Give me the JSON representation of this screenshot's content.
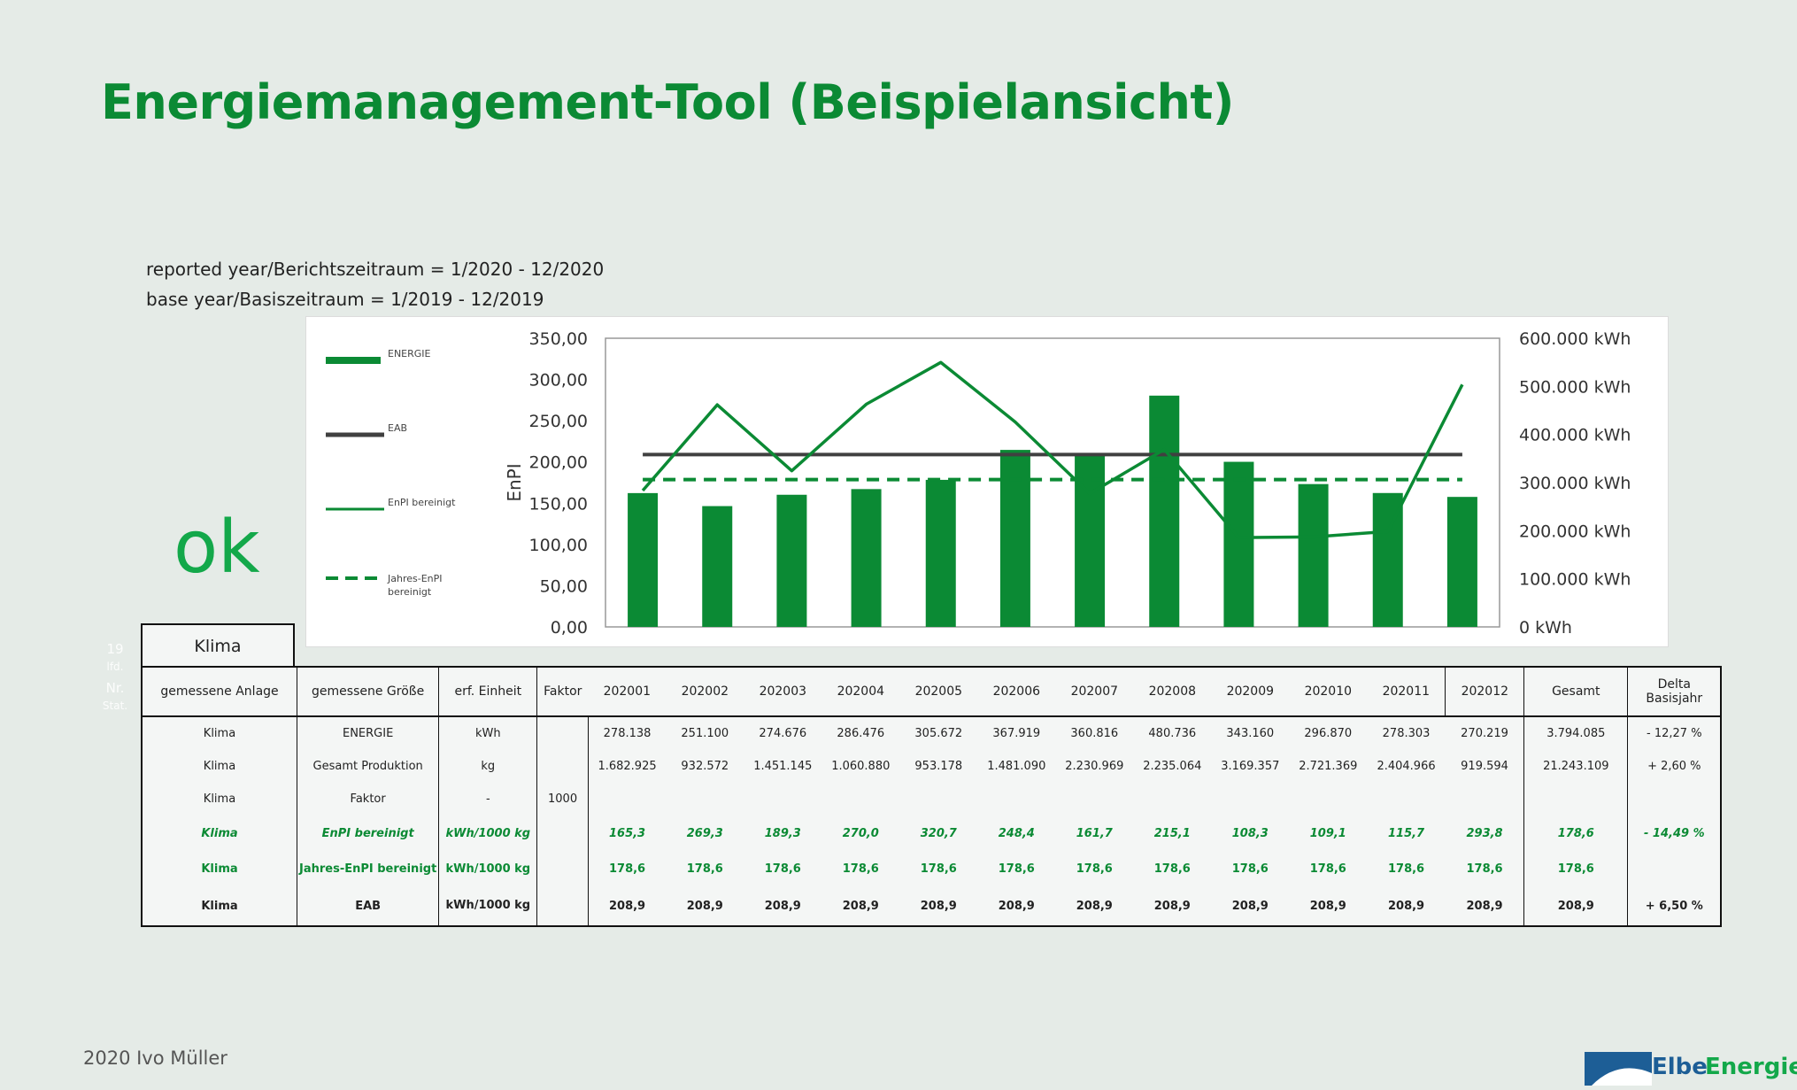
{
  "page": {
    "title": "Energiemanagement-Tool (Beispielansicht)",
    "reported_period": "reported year/Berichtszeitraum = 1/2020 - 12/2020",
    "base_period": "base year/Basiszeitraum = 1/2019 - 12/2019",
    "status_text": "ok",
    "faint_labels": [
      "19",
      "lfd.",
      "Nr.",
      "Stat."
    ],
    "footer_left": "2020 Ivo Müller",
    "logo": {
      "word1": "Elbe",
      "word2": "Energie"
    },
    "colors": {
      "accent": "#0b8a34",
      "bar": "#0b8a34",
      "eab": "#404040",
      "background": "#e5ebe7"
    }
  },
  "chart_data": {
    "type": "bar",
    "categories": [
      "202001",
      "202002",
      "202003",
      "202004",
      "202005",
      "202006",
      "202007",
      "202008",
      "202009",
      "202010",
      "202011",
      "202012"
    ],
    "bar_series": {
      "name": "ENERGIE",
      "axis": "right",
      "unit": "kWh",
      "values": [
        278138,
        251100,
        274676,
        286476,
        305672,
        367919,
        360816,
        480736,
        343160,
        296870,
        278303,
        270219
      ]
    },
    "line_series": [
      {
        "name": "EAB",
        "axis": "left",
        "style": "solid-dark",
        "values": [
          208.9,
          208.9,
          208.9,
          208.9,
          208.9,
          208.9,
          208.9,
          208.9,
          208.9,
          208.9,
          208.9,
          208.9
        ]
      },
      {
        "name": "EnPI bereinigt",
        "axis": "left",
        "style": "solid-green",
        "values": [
          165.3,
          269.3,
          189.3,
          270.0,
          320.7,
          248.4,
          161.7,
          215.1,
          108.3,
          109.1,
          115.7,
          293.8
        ]
      },
      {
        "name": "Jahres-EnPI bereinigt",
        "axis": "left",
        "style": "dashed-green",
        "values": [
          178.6,
          178.6,
          178.6,
          178.6,
          178.6,
          178.6,
          178.6,
          178.6,
          178.6,
          178.6,
          178.6,
          178.6
        ]
      }
    ],
    "ylabel": "EnPI",
    "ylim": [
      0,
      350
    ],
    "y_ticks": [
      "350,00",
      "300,00",
      "250,00",
      "200,00",
      "150,00",
      "100,00",
      "50,00",
      "0,00"
    ],
    "y2lim": [
      0,
      600000
    ],
    "y2_ticks": [
      "600.000 kWh",
      "500.000 kWh",
      "400.000 kWh",
      "300.000 kWh",
      "200.000 kWh",
      "100.000 kWh",
      "0 kWh"
    ],
    "legend": [
      "ENERGIE",
      "EAB",
      "EnPI bereinigt",
      "Jahres-EnPI bereinigt"
    ],
    "legend_placement": "left",
    "grid": false
  },
  "table": {
    "group_label": "Klima",
    "headers": [
      "gemessene Anlage",
      "gemessene Größe",
      "erf. Einheit",
      "Faktor",
      "202001",
      "202002",
      "202003",
      "202004",
      "202005",
      "202006",
      "202007",
      "202008",
      "202009",
      "202010",
      "202011",
      "202012",
      "Gesamt",
      "Delta Basisjahr"
    ],
    "rows": [
      {
        "style": "normal",
        "cells": [
          "Klima",
          "ENERGIE",
          "kWh",
          "",
          "278.138",
          "251.100",
          "274.676",
          "286.476",
          "305.672",
          "367.919",
          "360.816",
          "480.736",
          "343.160",
          "296.870",
          "278.303",
          "270.219",
          "3.794.085",
          "- 12,27 %"
        ]
      },
      {
        "style": "normal",
        "cells": [
          "Klima",
          "Gesamt Produktion",
          "kg",
          "",
          "1.682.925",
          "932.572",
          "1.451.145",
          "1.060.880",
          "953.178",
          "1.481.090",
          "2.230.969",
          "2.235.064",
          "3.169.357",
          "2.721.369",
          "2.404.966",
          "919.594",
          "21.243.109",
          "+ 2,60 %"
        ]
      },
      {
        "style": "normal",
        "cells": [
          "Klima",
          "Faktor",
          "-",
          "1000",
          "",
          "",
          "",
          "",
          "",
          "",
          "",
          "",
          "",
          "",
          "",
          "",
          "",
          ""
        ]
      },
      {
        "style": "green-italic",
        "cells": [
          "Klima",
          "EnPI bereinigt",
          "kWh/1000 kg",
          "",
          "165,3",
          "269,3",
          "189,3",
          "270,0",
          "320,7",
          "248,4",
          "161,7",
          "215,1",
          "108,3",
          "109,1",
          "115,7",
          "293,8",
          "178,6",
          "- 14,49 %"
        ]
      },
      {
        "style": "green",
        "cells": [
          "Klima",
          "Jahres-EnPI bereinigt",
          "kWh/1000 kg",
          "",
          "178,6",
          "178,6",
          "178,6",
          "178,6",
          "178,6",
          "178,6",
          "178,6",
          "178,6",
          "178,6",
          "178,6",
          "178,6",
          "178,6",
          "178,6",
          ""
        ]
      },
      {
        "style": "bold",
        "cells": [
          "Klima",
          "EAB",
          "kWh/1000 kg",
          "",
          "208,9",
          "208,9",
          "208,9",
          "208,9",
          "208,9",
          "208,9",
          "208,9",
          "208,9",
          "208,9",
          "208,9",
          "208,9",
          "208,9",
          "208,9",
          "+ 6,50 %"
        ]
      }
    ]
  }
}
